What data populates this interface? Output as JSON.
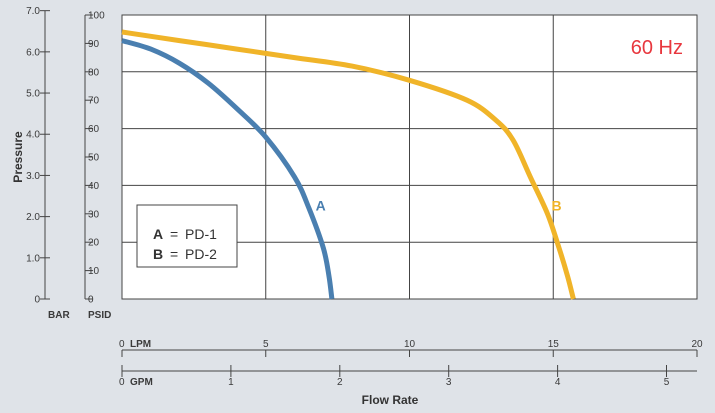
{
  "chart_data": {
    "type": "line",
    "frequency_label": "60 Hz",
    "xlabel": "Flow Rate",
    "ylabel": "Pressure",
    "x_axes": [
      {
        "unit": "LPM",
        "range": [
          0,
          20
        ],
        "ticks": [
          "0",
          "5",
          "10",
          "15",
          "20"
        ]
      },
      {
        "unit": "GPM",
        "range": [
          0,
          5.28
        ],
        "ticks": [
          "0",
          "1",
          "2",
          "3",
          "4",
          "5"
        ]
      }
    ],
    "y_axes": [
      {
        "unit": "BAR",
        "ticks": [
          "0",
          "1.0",
          "2.0",
          "3.0",
          "4.0",
          "5.0",
          "6.0",
          "7.0"
        ]
      },
      {
        "unit": "PSID",
        "range": [
          0,
          100
        ],
        "ticks": [
          "0",
          "10",
          "20",
          "30",
          "40",
          "50",
          "60",
          "70",
          "80",
          "90",
          "100"
        ]
      }
    ],
    "grid": true,
    "legend": {
      "placement": "bottom-left",
      "entries": [
        {
          "key": "A",
          "eq": "=",
          "text": "PD-1"
        },
        {
          "key": "B",
          "eq": "=",
          "text": "PD-2"
        }
      ]
    },
    "series": [
      {
        "name": "A",
        "color": "#4a7fb0",
        "x_lpm": [
          0,
          1,
          2,
          3,
          4,
          5,
          6,
          6.5,
          7,
          7.2,
          7.3
        ],
        "y_psid": [
          91,
          88,
          83,
          76,
          67,
          57,
          43,
          32,
          18,
          8,
          0
        ]
      },
      {
        "name": "B",
        "color": "#f0b429",
        "x_lpm": [
          0,
          2,
          4,
          6,
          8,
          10,
          12,
          13,
          13.6,
          14.2,
          14.8,
          15.2,
          15.5,
          15.7
        ],
        "y_psid": [
          94,
          91,
          88,
          85,
          82,
          77,
          70,
          63,
          56,
          43,
          30,
          18,
          8,
          0
        ]
      }
    ]
  }
}
